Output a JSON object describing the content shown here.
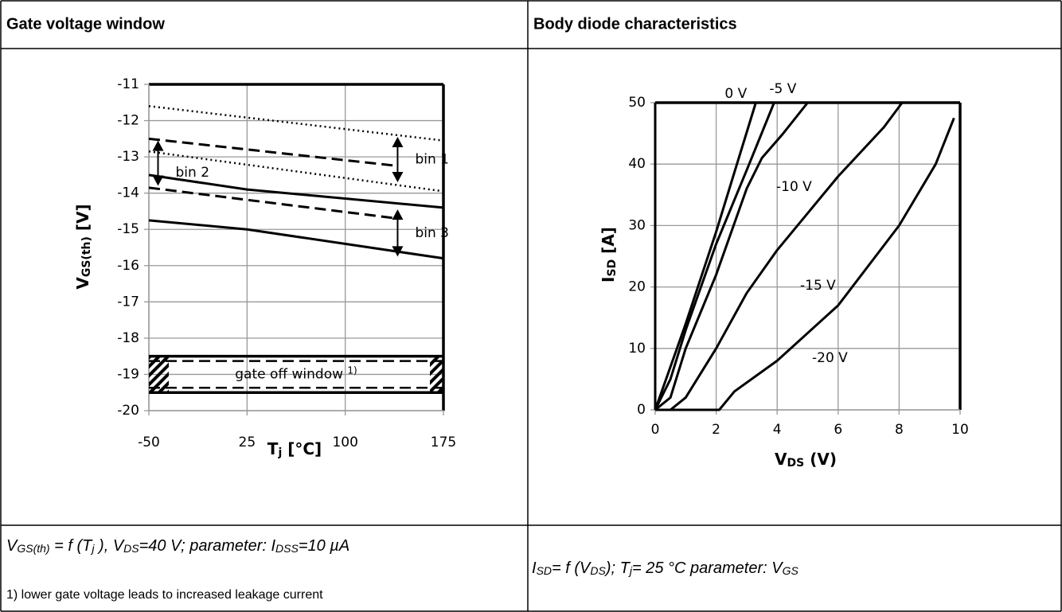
{
  "table": {
    "headers": [
      "Gate voltage window",
      "Body diode characteristics"
    ],
    "captions": [
      [
        {
          "text": "V"
        },
        {
          "text": "GS(th)",
          "sub": true
        },
        {
          "text": " = f (T"
        },
        {
          "text": "j",
          "sub": true
        },
        {
          "text": " ), V"
        },
        {
          "text": "DS",
          "sub": true
        },
        {
          "text": "=40 V; parameter: I"
        },
        {
          "text": "DSS",
          "sub": true
        },
        {
          "text": "=10 µA"
        }
      ],
      [
        {
          "text": "I"
        },
        {
          "text": "SD",
          "sub": true
        },
        {
          "text": "= f (V"
        },
        {
          "text": "DS",
          "sub": true
        },
        {
          "text": "); T"
        },
        {
          "text": "j",
          "sub": true
        },
        {
          "text": "= 25 °C parameter: V"
        },
        {
          "text": "GS",
          "sub": true
        }
      ]
    ],
    "footnote": "1)  lower gate voltage leads to increased leakage current"
  },
  "chart_data": [
    {
      "type": "line",
      "xlabel": {
        "text": "T",
        "sub": "j",
        "unit": " [°C]"
      },
      "ylabel": {
        "text": "V",
        "sub": "GS(th)",
        "unit": " [V]"
      },
      "xlim": [
        -50,
        175
      ],
      "xticks": [
        -50,
        25,
        100,
        175
      ],
      "ylim": [
        -20,
        -11
      ],
      "yticks": [
        -11,
        -12,
        -13,
        -14,
        -15,
        -16,
        -17,
        -18,
        -19,
        -20
      ],
      "grid": true,
      "series": [
        {
          "color": "#000000",
          "dash": "dotted",
          "x": [
            -50,
            175
          ],
          "values": [
            -11.6,
            -12.55
          ]
        },
        {
          "color": "#000000",
          "dash": "dashed",
          "x": [
            -50,
            140
          ],
          "values": [
            -12.5,
            -13.25
          ]
        },
        {
          "color": "#000000",
          "dash": "dotted",
          "x": [
            -50,
            175
          ],
          "values": [
            -12.85,
            -13.95
          ]
        },
        {
          "color": "#000000",
          "dash": "dashed",
          "x": [
            -50,
            140
          ],
          "values": [
            -13.85,
            -14.7
          ]
        },
        {
          "color": "#000000",
          "dash": "solid",
          "x": [
            -50,
            25,
            175
          ],
          "values": [
            -13.5,
            -13.9,
            -14.4
          ]
        },
        {
          "color": "#000000",
          "dash": "solid",
          "x": [
            -50,
            25,
            175
          ],
          "values": [
            -14.75,
            -15.0,
            -15.8
          ]
        }
      ],
      "annotations": [
        {
          "text": "bin 1",
          "x": 140,
          "y": [
            -12.45,
            -13.7
          ]
        },
        {
          "text": "bin 2",
          "x": -43,
          "y": [
            -12.55,
            -13.8
          ]
        },
        {
          "text": "bin 3",
          "x": 140,
          "y": [
            -14.45,
            -15.75
          ]
        }
      ],
      "window": {
        "text": "gate off window ",
        "sup": "1)",
        "y": [
          -18.5,
          -19.5
        ]
      }
    },
    {
      "type": "line",
      "xlabel": {
        "text": "V",
        "sub": "DS",
        "unit": " (V)"
      },
      "ylabel": {
        "text": "I",
        "sub": "SD",
        "unit": " [A]"
      },
      "xlim": [
        0,
        10
      ],
      "xticks": [
        0,
        2,
        4,
        6,
        8,
        10
      ],
      "ylim": [
        0,
        50
      ],
      "yticks": [
        0,
        10,
        20,
        30,
        40,
        50
      ],
      "grid": true,
      "series": [
        {
          "name": "0 V",
          "color": "#000000",
          "x": [
            0,
            1,
            2,
            3.3
          ],
          "values": [
            0,
            14,
            29,
            50
          ]
        },
        {
          "name": "-5 V",
          "color": "#000000",
          "x": [
            0,
            0.5,
            1,
            2,
            3,
            3.9
          ],
          "values": [
            0,
            5,
            13,
            27,
            39,
            50
          ]
        },
        {
          "name": "-10 V",
          "color": "#000000",
          "x": [
            0,
            0.5,
            1,
            2,
            3,
            3.5,
            4.2,
            5
          ],
          "values": [
            0,
            2,
            10,
            22,
            36,
            41,
            45,
            50
          ]
        },
        {
          "name": "-15 V",
          "color": "#000000",
          "x": [
            0,
            0.5,
            1,
            2,
            3,
            4,
            6,
            7.5,
            8.1
          ],
          "values": [
            0,
            0,
            2,
            10,
            19,
            26,
            38,
            46,
            50
          ]
        },
        {
          "name": "-20 V",
          "color": "#000000",
          "x": [
            0,
            2.1,
            2.6,
            4,
            6,
            8,
            9.2,
            9.8
          ],
          "values": [
            0,
            0,
            3,
            8,
            17,
            30,
            40,
            47.5
          ]
        }
      ]
    }
  ]
}
